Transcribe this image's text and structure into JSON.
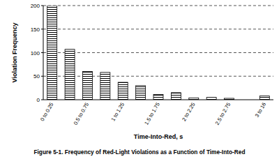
{
  "chart_data": {
    "type": "bar",
    "caption": "Figure 5-1.  Frequency of Red-Light Violations as a Function of Time-Into-Red",
    "x_label": "Time-Into-Red, s",
    "y_label": "Violation Frequency",
    "categories": [
      "0 to 0.25",
      null,
      "0.5 to 0.75",
      null,
      "1 to 1.25",
      null,
      "1.5 to 1.75",
      null,
      "2 to 2.25",
      null,
      "2.5 to 2.75",
      null,
      "3 to 16"
    ],
    "values": [
      200,
      107,
      60,
      58,
      37,
      30,
      11,
      15,
      4,
      5,
      3,
      0,
      8
    ],
    "color": "#000000",
    "ylim": [
      0,
      200
    ],
    "yticks": [
      0,
      50,
      100,
      150,
      200
    ],
    "grid": true
  }
}
